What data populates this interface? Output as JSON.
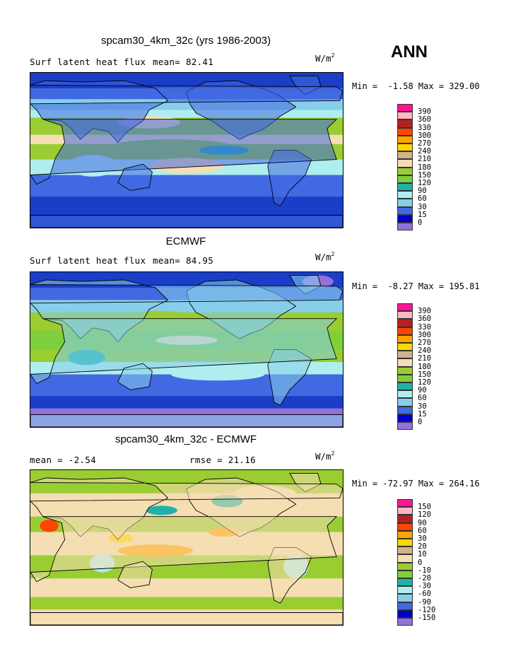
{
  "season": "ANN",
  "panels": [
    {
      "title": "spcam30_4km_32c (yrs 1986-2003)",
      "left_text": "Surf latent heat flux",
      "mid_text": "mean=  82.41",
      "units": "W/m",
      "units_sup": "2",
      "minmax": "Min =  -1.58 Max = 329.00",
      "kind": "model",
      "levels": [
        "390",
        "360",
        "330",
        "300",
        "270",
        "240",
        "210",
        "180",
        "150",
        "120",
        "90",
        "60",
        "30",
        "15",
        "0"
      ],
      "colors": [
        "#ff1493",
        "#ffb6c1",
        "#b22222",
        "#ff4500",
        "#ffa500",
        "#ffd700",
        "#d2b48c",
        "#f5deb3",
        "#9acd32",
        "#7fcf3c",
        "#20b2aa",
        "#afeeee",
        "#87ceeb",
        "#4169e1",
        "#0000cd",
        "#9370db"
      ]
    },
    {
      "title": "ECMWF",
      "left_text": "Surf latent heat flux",
      "mid_text": "mean=  84.95",
      "units": "W/m",
      "units_sup": "2",
      "minmax": "Min =  -8.27 Max = 195.81",
      "kind": "obs",
      "levels": [
        "390",
        "360",
        "330",
        "300",
        "270",
        "240",
        "210",
        "180",
        "150",
        "120",
        "90",
        "60",
        "30",
        "15",
        "0"
      ],
      "colors": [
        "#ff1493",
        "#ffb6c1",
        "#b22222",
        "#ff4500",
        "#ffa500",
        "#ffd700",
        "#d2b48c",
        "#f5deb3",
        "#9acd32",
        "#7fcf3c",
        "#20b2aa",
        "#afeeee",
        "#87ceeb",
        "#4169e1",
        "#0000cd",
        "#9370db"
      ]
    },
    {
      "title": "spcam30_4km_32c - ECMWF",
      "left_text": "mean =  -2.54",
      "mid_text": "rmse =  21.16",
      "units": "W/m",
      "units_sup": "2",
      "minmax": "Min = -72.97 Max = 264.16",
      "kind": "diff",
      "levels": [
        "150",
        "120",
        "90",
        "60",
        "30",
        "20",
        "10",
        "0",
        "-10",
        "-20",
        "-30",
        "-60",
        "-90",
        "-120",
        "-150"
      ],
      "colors": [
        "#ff1493",
        "#ffb6c1",
        "#b22222",
        "#ff4500",
        "#ffa500",
        "#ffd700",
        "#d2b48c",
        "#f5deb3",
        "#9acd32",
        "#7fcf3c",
        "#20b2aa",
        "#afeeee",
        "#87ceeb",
        "#4169e1",
        "#0000cd",
        "#9370db"
      ]
    }
  ]
}
